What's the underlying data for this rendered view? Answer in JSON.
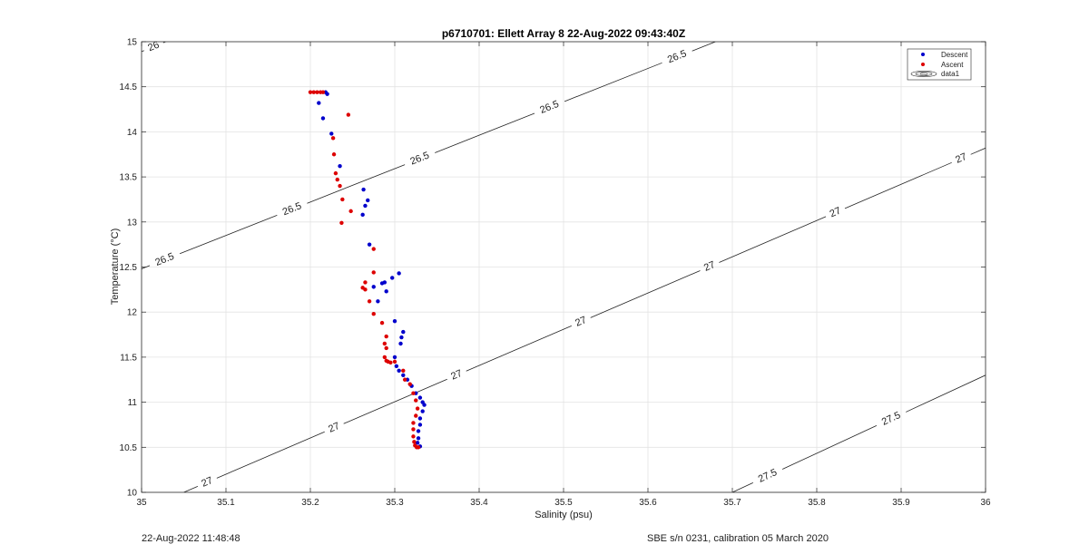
{
  "chart_data": {
    "type": "scatter",
    "title": "p6710701: Ellett Array 8 22-Aug-2022 09:43:40Z",
    "xlabel": "Salinity (psu)",
    "ylabel": "Temperature (°C)",
    "xlim": [
      35,
      36
    ],
    "ylim": [
      10,
      15
    ],
    "xticks": [
      "35",
      "35.1",
      "35.2",
      "35.3",
      "35.4",
      "35.5",
      "35.6",
      "35.7",
      "35.8",
      "35.9",
      "36"
    ],
    "yticks": [
      "10",
      "10.5",
      "11",
      "11.5",
      "12",
      "12.5",
      "13",
      "13.5",
      "14",
      "14.5",
      "15"
    ],
    "grid": true,
    "legend_position": "top-right",
    "legend": [
      {
        "label": "Descent",
        "color": "#0000cc"
      },
      {
        "label": "Ascent",
        "color": "#dd0000"
      },
      {
        "label": "data1",
        "color": "#000000"
      }
    ],
    "contours": [
      {
        "label": "26",
        "points": [
          [
            35.0,
            14.89
          ],
          [
            35.2,
            15.66
          ]
        ],
        "label_positions": [
          [
            35.015,
            14.93
          ]
        ]
      },
      {
        "label": "26.5",
        "points": [
          [
            35.0,
            12.48
          ],
          [
            35.68,
            15.0
          ]
        ],
        "label_positions": [
          [
            35.028,
            12.57
          ],
          [
            35.178,
            13.15
          ],
          [
            35.329,
            13.72
          ],
          [
            35.483,
            14.28
          ],
          [
            35.635,
            14.82
          ]
        ]
      },
      {
        "label": "27",
        "points": [
          [
            35.05,
            10.0
          ],
          [
            36.0,
            13.82
          ]
        ],
        "label_positions": [
          [
            35.077,
            10.13
          ],
          [
            35.228,
            10.72
          ],
          [
            35.372,
            11.33
          ],
          [
            35.519,
            11.93
          ],
          [
            35.671,
            12.55
          ],
          [
            35.82,
            13.15
          ],
          [
            35.97,
            13.73
          ]
        ]
      },
      {
        "label": "27.5",
        "points": [
          [
            35.7,
            10.0
          ],
          [
            36.0,
            11.3
          ]
        ],
        "label_positions": [
          [
            35.742,
            10.18
          ],
          [
            35.889,
            10.8
          ]
        ]
      }
    ],
    "series": [
      {
        "name": "Descent",
        "color": "#0000cc",
        "points": [
          [
            35.218,
            14.44
          ],
          [
            35.22,
            14.42
          ],
          [
            35.21,
            14.32
          ],
          [
            35.215,
            14.15
          ],
          [
            35.225,
            13.98
          ],
          [
            35.235,
            13.62
          ],
          [
            35.263,
            13.36
          ],
          [
            35.268,
            13.24
          ],
          [
            35.265,
            13.18
          ],
          [
            35.262,
            13.08
          ],
          [
            35.27,
            12.75
          ],
          [
            35.305,
            12.43
          ],
          [
            35.297,
            12.38
          ],
          [
            35.288,
            12.33
          ],
          [
            35.285,
            12.32
          ],
          [
            35.275,
            12.28
          ],
          [
            35.29,
            12.23
          ],
          [
            35.28,
            12.12
          ],
          [
            35.3,
            11.9
          ],
          [
            35.31,
            11.78
          ],
          [
            35.308,
            11.72
          ],
          [
            35.307,
            11.65
          ],
          [
            35.3,
            11.5
          ],
          [
            35.302,
            11.4
          ],
          [
            35.305,
            11.35
          ],
          [
            35.31,
            11.3
          ],
          [
            35.315,
            11.25
          ],
          [
            35.32,
            11.18
          ],
          [
            35.325,
            11.1
          ],
          [
            35.33,
            11.05
          ],
          [
            35.333,
            11.0
          ],
          [
            35.335,
            10.97
          ],
          [
            35.333,
            10.9
          ],
          [
            35.33,
            10.82
          ],
          [
            35.33,
            10.75
          ],
          [
            35.328,
            10.68
          ],
          [
            35.328,
            10.6
          ],
          [
            35.327,
            10.55
          ],
          [
            35.33,
            10.51
          ]
        ]
      },
      {
        "name": "Ascent",
        "color": "#dd0000",
        "points": [
          [
            35.2,
            14.44
          ],
          [
            35.204,
            14.44
          ],
          [
            35.208,
            14.44
          ],
          [
            35.212,
            14.44
          ],
          [
            35.215,
            14.44
          ],
          [
            35.245,
            14.19
          ],
          [
            35.227,
            13.93
          ],
          [
            35.228,
            13.75
          ],
          [
            35.23,
            13.54
          ],
          [
            35.232,
            13.47
          ],
          [
            35.235,
            13.4
          ],
          [
            35.238,
            13.25
          ],
          [
            35.248,
            13.12
          ],
          [
            35.237,
            12.99
          ],
          [
            35.275,
            12.7
          ],
          [
            35.275,
            12.44
          ],
          [
            35.265,
            12.33
          ],
          [
            35.262,
            12.27
          ],
          [
            35.265,
            12.25
          ],
          [
            35.27,
            12.12
          ],
          [
            35.275,
            11.98
          ],
          [
            35.285,
            11.88
          ],
          [
            35.29,
            11.73
          ],
          [
            35.288,
            11.65
          ],
          [
            35.29,
            11.6
          ],
          [
            35.288,
            11.5
          ],
          [
            35.29,
            11.46
          ],
          [
            35.292,
            11.45
          ],
          [
            35.295,
            11.44
          ],
          [
            35.3,
            11.45
          ],
          [
            35.31,
            11.35
          ],
          [
            35.312,
            11.25
          ],
          [
            35.318,
            11.2
          ],
          [
            35.322,
            11.1
          ],
          [
            35.325,
            11.02
          ],
          [
            35.327,
            10.93
          ],
          [
            35.325,
            10.85
          ],
          [
            35.322,
            10.77
          ],
          [
            35.322,
            10.7
          ],
          [
            35.322,
            10.62
          ],
          [
            35.323,
            10.56
          ],
          [
            35.324,
            10.52
          ],
          [
            35.326,
            10.5
          ],
          [
            35.328,
            10.5
          ]
        ]
      }
    ]
  },
  "footer": {
    "timestamp": "22-Aug-2022 11:48:48",
    "instrument": "SBE s/n 0231, calibration 05 March 2020"
  }
}
